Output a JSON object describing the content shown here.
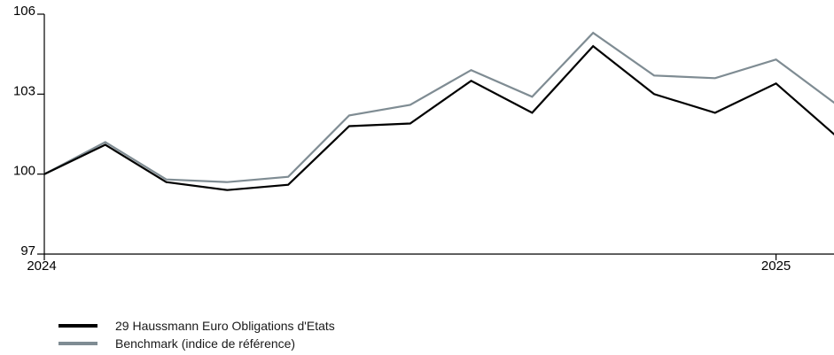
{
  "chart_data": {
    "type": "line",
    "x": [
      "2024-01",
      "2024-02",
      "2024-03",
      "2024-04",
      "2024-05",
      "2024-06",
      "2024-07",
      "2024-08",
      "2024-09",
      "2024-10",
      "2024-11",
      "2024-12",
      "2025-01",
      "2025-02"
    ],
    "x_tick_labels": [
      "2024",
      "2025"
    ],
    "y_ticks": [
      97,
      100,
      103,
      106
    ],
    "ylim": [
      97,
      106
    ],
    "grid": false,
    "legend_position": "bottom-left",
    "series": [
      {
        "name": "29 Haussmann Euro Obligations d'Etats",
        "color": "#000000",
        "values": [
          100.0,
          101.1,
          99.7,
          99.4,
          99.6,
          101.8,
          101.9,
          103.5,
          102.3,
          104.8,
          103.0,
          102.3,
          103.4,
          101.4
        ]
      },
      {
        "name": "Benchmark (indice de référence)",
        "color": "#7f8c93",
        "values": [
          100.0,
          101.2,
          99.8,
          99.7,
          99.9,
          102.2,
          102.6,
          103.9,
          102.9,
          105.3,
          103.7,
          103.6,
          104.3,
          102.6
        ]
      }
    ]
  }
}
